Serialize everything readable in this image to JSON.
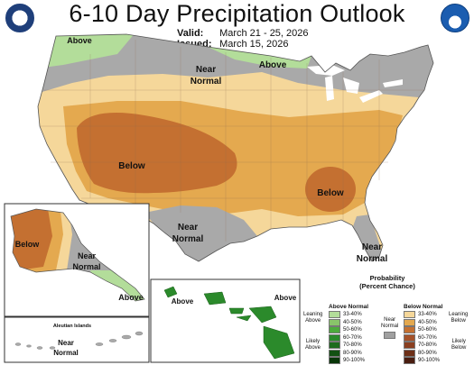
{
  "header": {
    "title": "6-10 Day Precipitation Outlook",
    "valid_label": "Valid:",
    "valid_value": "March 21 - 25, 2026",
    "issued_label": "Issued:",
    "issued_value": "March 15, 2026"
  },
  "logos": {
    "left": "noaa-cpc-seal-icon",
    "right": "noaa-logo-icon"
  },
  "map_labels": {
    "above_nw": "Above",
    "near_normal_north_1": "Near",
    "near_normal_north_2": "Normal",
    "above_north": "Above",
    "below_southwest": "Below",
    "below_southeast": "Below",
    "near_normal_texas_1": "Near",
    "near_normal_texas_2": "Normal",
    "near_normal_florida_1": "Near",
    "near_normal_florida_2": "Normal",
    "alaska_below": "Below",
    "alaska_near_1": "Near",
    "alaska_near_2": "Normal",
    "alaska_above": "Above",
    "aleutian_title": "Aleutian Islands",
    "aleutian_near_1": "Near",
    "aleutian_near_2": "Normal",
    "hawaii_above_left": "Above",
    "hawaii_above_right": "Above"
  },
  "legend": {
    "title_1": "Probability",
    "title_2": "(Percent Chance)",
    "above_header": "Above Normal",
    "below_header": "Below Normal",
    "near_1": "Near",
    "near_2": "Normal",
    "leaning_above_1": "Leaning",
    "leaning_above_2": "Above",
    "likely_above_1": "Likely",
    "likely_above_2": "Above",
    "leaning_below_1": "Leaning",
    "leaning_below_2": "Below",
    "likely_below_1": "Likely",
    "likely_below_2": "Below",
    "near_color": "#a0a0a0",
    "above": [
      {
        "label": "33-40%",
        "color": "#b3dd9a"
      },
      {
        "label": "40-50%",
        "color": "#89c46a"
      },
      {
        "label": "50-60%",
        "color": "#4daa3c"
      },
      {
        "label": "60-70%",
        "color": "#2b8a2b"
      },
      {
        "label": "70-80%",
        "color": "#1d6b1d"
      },
      {
        "label": "80-90%",
        "color": "#125112"
      },
      {
        "label": "90-100%",
        "color": "#083608"
      }
    ],
    "below": [
      {
        "label": "33-40%",
        "color": "#f5d79a"
      },
      {
        "label": "40-50%",
        "color": "#e4a94f"
      },
      {
        "label": "50-60%",
        "color": "#c47031"
      },
      {
        "label": "60-70%",
        "color": "#a5522a"
      },
      {
        "label": "70-80%",
        "color": "#8a3f20"
      },
      {
        "label": "80-90%",
        "color": "#6e3018"
      },
      {
        "label": "90-100%",
        "color": "#4a1d10"
      }
    ]
  }
}
